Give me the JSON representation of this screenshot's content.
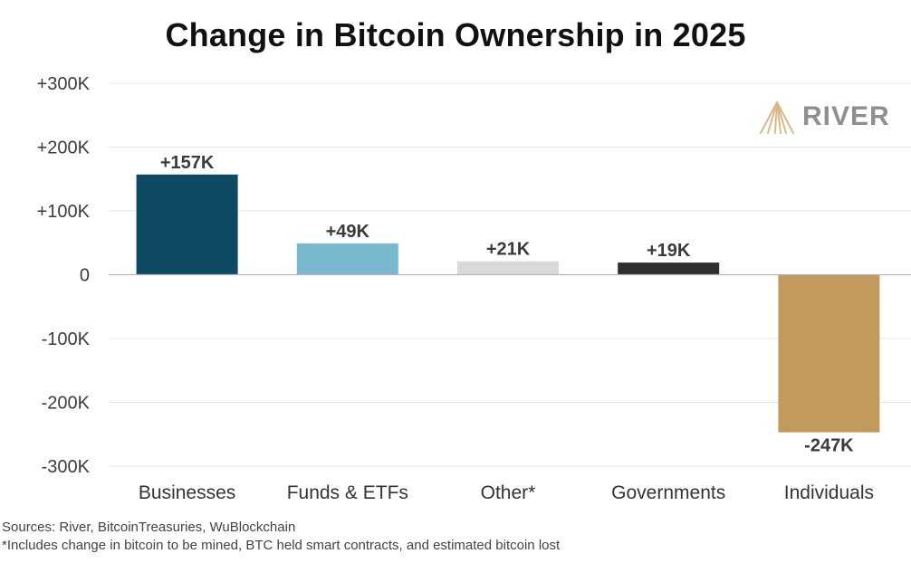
{
  "brand": {
    "name": "RIVER",
    "logo_icon": "river-mountain-logo-icon",
    "logo_color": "#d8b98a"
  },
  "notes": {
    "sources": "Sources: River, BitcoinTreasuries, WuBlockchain",
    "footnote": "*Includes change in bitcoin to be mined, BTC held smart contracts, and estimated bitcoin lost"
  },
  "chart_data": {
    "type": "bar",
    "title": "Change in Bitcoin Ownership in 2025",
    "xlabel": "",
    "ylabel": "",
    "categories": [
      "Businesses",
      "Funds & ETFs",
      "Other*",
      "Governments",
      "Individuals"
    ],
    "values": [
      157,
      49,
      21,
      19,
      -247
    ],
    "data_labels": [
      "+157K",
      "+49K",
      "+21K",
      "+19K",
      "-247K"
    ],
    "colors": [
      "#0e4a63",
      "#7ab8cf",
      "#d9d9d9",
      "#2f2f2f",
      "#c19a5c"
    ],
    "ylim": [
      -300,
      300
    ],
    "yticks": [
      300,
      200,
      100,
      0,
      -100,
      -200,
      -300
    ],
    "ytick_labels": [
      "+300K",
      "+200K",
      "+100K",
      "0",
      "-100K",
      "-200K",
      "-300K"
    ],
    "grid": true,
    "legend": "none"
  }
}
